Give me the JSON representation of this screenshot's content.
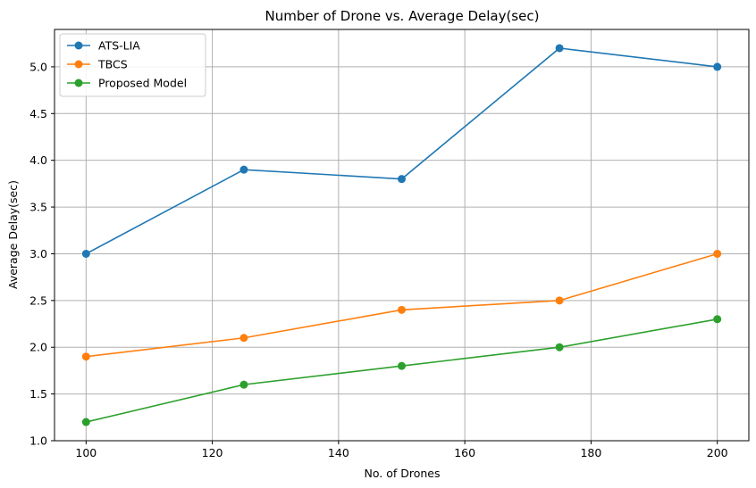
{
  "chart_data": {
    "type": "line",
    "title": "Number of Drone vs. Average Delay(sec)",
    "xlabel": "No. of Drones",
    "ylabel": "Average Delay(sec)",
    "x": [
      100,
      125,
      150,
      175,
      200
    ],
    "xlim": [
      95,
      205
    ],
    "ylim": [
      1.0,
      5.4
    ],
    "xticks": [
      100,
      120,
      140,
      160,
      180,
      200
    ],
    "yticks": [
      1.0,
      1.5,
      2.0,
      2.5,
      3.0,
      3.5,
      4.0,
      4.5,
      5.0
    ],
    "ytick_labels": [
      "1.0",
      "1.5",
      "2.0",
      "2.5",
      "3.0",
      "3.5",
      "4.0",
      "4.5",
      "5.0"
    ],
    "grid": true,
    "legend_position": "top-left",
    "series": [
      {
        "name": "ATS-LIA",
        "color": "#1f77b4",
        "marker": "circle",
        "values": [
          3.0,
          3.9,
          3.8,
          5.2,
          5.0
        ]
      },
      {
        "name": "TBCS",
        "color": "#ff7f0e",
        "marker": "circle",
        "values": [
          1.9,
          2.1,
          2.4,
          2.5,
          3.0
        ]
      },
      {
        "name": "Proposed Model",
        "color": "#2ca02c",
        "marker": "circle",
        "values": [
          1.2,
          1.6,
          1.8,
          2.0,
          2.3
        ]
      }
    ]
  }
}
